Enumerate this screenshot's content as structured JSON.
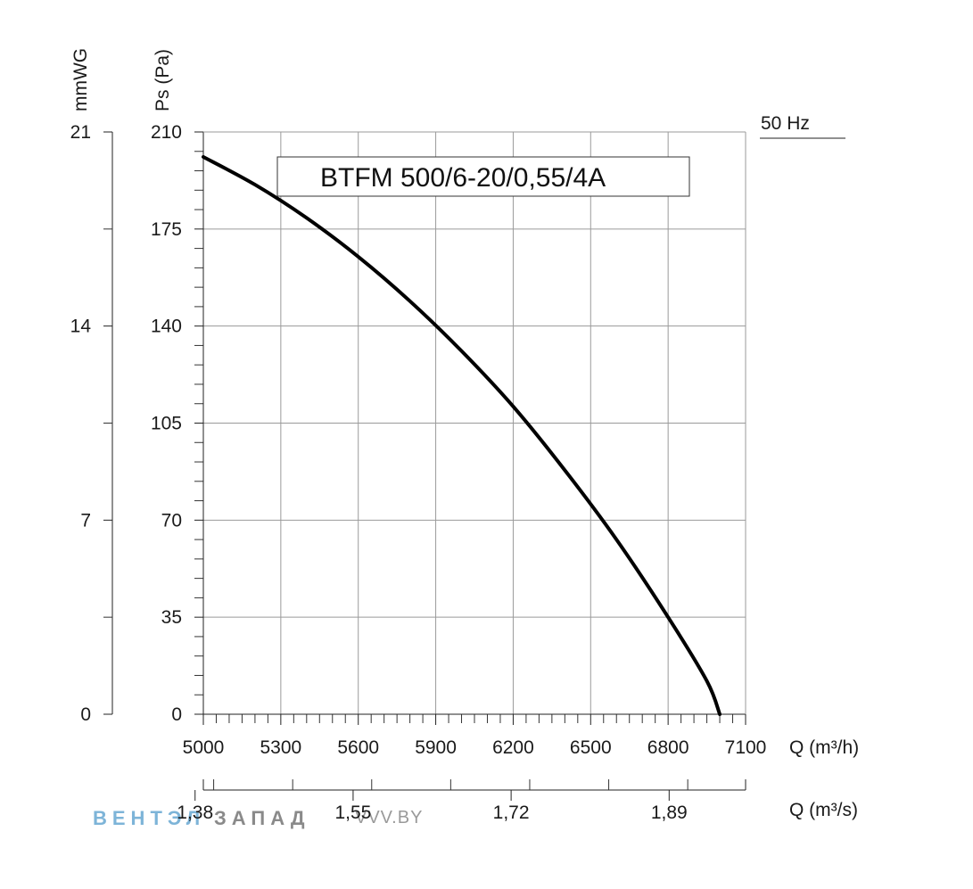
{
  "chart_data": {
    "type": "line",
    "title": "BTFM 500/6-20/0,55/4A",
    "frequency_label": "50 Hz",
    "xlabel": "Q (m³/h)",
    "xlim": [
      5000,
      7100
    ],
    "x_ticks": [
      "5000",
      "5300",
      "5600",
      "5900",
      "6200",
      "6500",
      "6800",
      "7100"
    ],
    "x2label": "Q (m³/s)",
    "x2_ticks": [
      {
        "label": "1,38",
        "value": 1.38
      },
      {
        "label": "1,55",
        "value": 1.55
      },
      {
        "label": "1,72",
        "value": 1.72
      },
      {
        "label": "1,89",
        "value": 1.89
      }
    ],
    "ylabel": "Ps (Pa)",
    "ylim": [
      0,
      210
    ],
    "y_ticks": [
      "0",
      "35",
      "70",
      "105",
      "140",
      "175",
      "210"
    ],
    "y2label": "mmWG",
    "y2lim": [
      0,
      21
    ],
    "y2_ticks": [
      "0",
      "7",
      "14",
      "21"
    ],
    "grid": true,
    "series": [
      {
        "name": "BTFM 500/6-20/0,55/4A",
        "x": [
          5000,
          5200,
          5400,
          5600,
          5800,
          6000,
          6200,
          6400,
          6600,
          6800,
          6950,
          7000
        ],
        "y": [
          201,
          191,
          179,
          165,
          149,
          131,
          111,
          88,
          63,
          35,
          12,
          0
        ]
      }
    ]
  },
  "watermark": {
    "brand_part1": "ВЕНТЭЛ",
    "brand_part2": "ЗАПАД",
    "site": "VVV.BY",
    "color_part1": "#7db4d8",
    "color_part2": "#8a8a8a"
  }
}
